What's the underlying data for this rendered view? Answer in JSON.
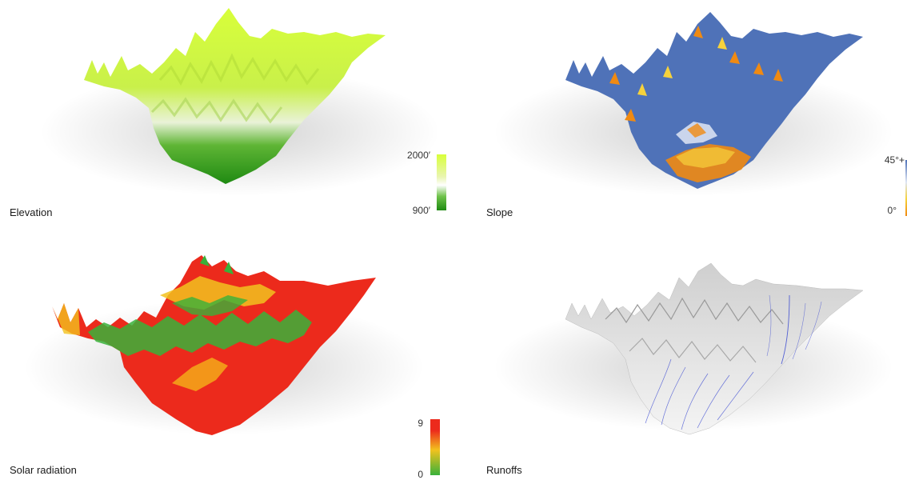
{
  "panels": {
    "elevation": {
      "label": "Elevation",
      "legend_max": "2000′",
      "legend_min": "900′",
      "colors": {
        "high": "#d8ff3a",
        "mid": "#e9f2c8",
        "low": "#1f8a12"
      }
    },
    "slope": {
      "label": "Slope",
      "legend_max": "45°+",
      "legend_min": "0°",
      "colors": {
        "base": "#4f72b8",
        "hot": "#f08a12",
        "warm": "#f6d23c"
      }
    },
    "solar": {
      "label": "Solar radiation",
      "legend_max": "9",
      "legend_min": "0",
      "colors": {
        "high": "#ec2a1c",
        "mid": "#f2c21e",
        "low": "#39b13a"
      }
    },
    "runoffs": {
      "label": "Runoffs",
      "colors": {
        "surface": "#e8e8e8",
        "flow": "#3040d0"
      }
    }
  }
}
